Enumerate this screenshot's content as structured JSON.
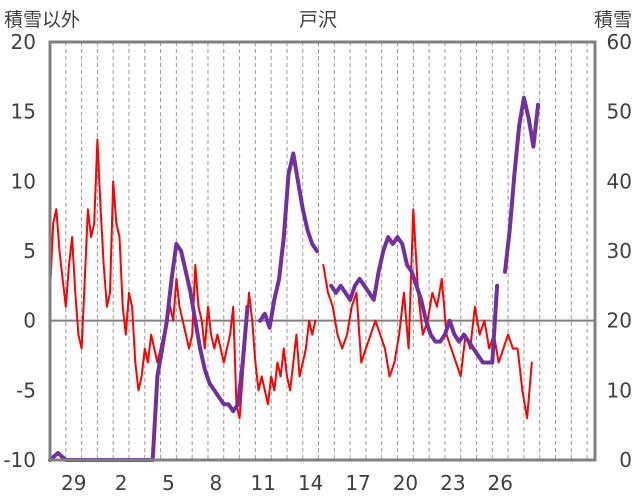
{
  "chart_data": {
    "type": "line",
    "title": "戸沢",
    "ylabel_left": "積雪以外",
    "ylabel_right": "積雪",
    "x_tick_labels": [
      "29",
      "2",
      "5",
      "8",
      "11",
      "14",
      "17",
      "20",
      "23",
      "26"
    ],
    "x_range": [
      27.5,
      62
    ],
    "x_tick_positions": [
      29,
      32,
      35,
      38,
      41,
      44,
      47,
      50,
      53,
      56
    ],
    "y_left_range": [
      -10,
      20
    ],
    "y_left_ticks": [
      "20",
      "15",
      "10",
      "5",
      "0",
      "-5",
      "-10"
    ],
    "y_right_range": [
      0,
      60
    ],
    "y_right_ticks": [
      "60",
      "50",
      "40",
      "30",
      "20",
      "10",
      "0"
    ],
    "grid": {
      "vertical_dashed": true,
      "zero_line": true
    },
    "series": [
      {
        "axis": "left",
        "color": "#ff0000",
        "x": [
          27.5,
          27.7,
          27.9,
          28.1,
          28.3,
          28.5,
          28.7,
          28.9,
          29.1,
          29.3,
          29.5,
          29.7,
          29.9,
          30.1,
          30.3,
          30.5,
          30.7,
          30.9,
          31.1,
          31.3,
          31.5,
          31.7,
          31.9,
          32.1,
          32.3,
          32.5,
          32.7,
          32.9,
          33.1,
          33.3,
          33.5,
          33.7,
          33.9,
          34.1,
          34.3,
          34.5,
          34.7,
          34.9,
          35.1,
          35.3,
          35.5,
          35.7,
          35.9,
          36.1,
          36.3,
          36.5,
          36.7,
          36.9,
          37.1,
          37.3,
          37.5,
          37.7,
          37.9,
          38.1,
          38.3,
          38.5,
          38.7,
          38.9,
          39.1,
          39.3,
          39.5,
          39.7,
          39.9,
          40.1,
          40.3,
          40.5,
          40.7,
          40.9,
          41.1,
          41.3,
          41.5,
          41.7,
          41.9,
          42.1,
          42.3,
          42.5,
          42.7,
          42.9,
          43.1,
          43.3,
          43.5,
          43.7,
          43.9,
          44.1,
          44.3
        ],
        "values": [
          2,
          7,
          8,
          5,
          3,
          1,
          4,
          6,
          2,
          -1,
          -2,
          3,
          8,
          6,
          7,
          13,
          8,
          4,
          1,
          2,
          10,
          7,
          6,
          1,
          -1,
          2,
          1,
          -3,
          -5,
          -4,
          -2,
          -3,
          -1,
          -2,
          -3,
          -2,
          -1,
          0,
          1,
          0,
          3,
          1,
          0,
          -1,
          -2,
          -1,
          4,
          1,
          0,
          -2,
          1,
          -1,
          -2,
          -1,
          -2,
          -3,
          -2,
          -1,
          1,
          -6,
          -7,
          -4,
          -1,
          2,
          0,
          -3,
          -5,
          -4,
          -5,
          -6,
          -4,
          -5,
          -3,
          -4,
          -2,
          -4,
          -5,
          -3,
          -1,
          -4,
          -3,
          -2,
          0,
          -1,
          0
        ]
      },
      {
        "axis": "left",
        "color": "#ff0000",
        "x": [
          44.8,
          45.1,
          45.4,
          45.7,
          46.0,
          46.3,
          46.6,
          46.9,
          47.2,
          47.5,
          47.8,
          48.1,
          48.4,
          48.7,
          49.0,
          49.3,
          49.6,
          49.9,
          50.2,
          50.5,
          50.8,
          51.1,
          51.4,
          51.7,
          52.0,
          52.3,
          52.6,
          52.9,
          53.2,
          53.5,
          53.8,
          54.1,
          54.4,
          54.7,
          55.0,
          55.3,
          55.6,
          55.9,
          56.2,
          56.5,
          56.8,
          57.1,
          57.4,
          57.7,
          58.0
        ],
        "values": [
          4,
          2,
          1,
          -1,
          -2,
          -1,
          1,
          2,
          -3,
          -2,
          -1,
          0,
          -1,
          -2,
          -4,
          -3,
          -1,
          2,
          -2,
          8,
          2,
          -1,
          0,
          2,
          1,
          3,
          -1,
          -2,
          -3,
          -4,
          -1,
          -2,
          1,
          -1,
          0,
          -2,
          -1,
          -3,
          -2,
          -1,
          -2,
          -2,
          -5,
          -7,
          -3
        ]
      },
      {
        "axis": "right",
        "color": "#7030a0",
        "x": [
          27.5,
          28.0,
          28.5,
          29.0,
          29.5,
          30.0,
          30.5,
          31.0,
          31.5,
          32.0,
          32.5,
          33.0,
          33.5,
          34.0,
          34.3,
          34.6,
          34.9,
          35.2,
          35.5,
          35.8,
          36.1,
          36.4,
          36.7,
          37.0,
          37.3,
          37.6,
          37.9,
          38.2,
          38.5,
          38.8,
          39.1,
          39.4,
          39.7,
          40.0
        ],
        "values": [
          0,
          1,
          0,
          0,
          0,
          0,
          0,
          0,
          0,
          0,
          0,
          0,
          0,
          0,
          12,
          16,
          20,
          26,
          31,
          30,
          27,
          24,
          20,
          16,
          13,
          11,
          10,
          9,
          8,
          8,
          7,
          8,
          14,
          22
        ]
      },
      {
        "axis": "right",
        "color": "#7030a0",
        "x": [
          40.8,
          41.1,
          41.4,
          41.7,
          42.0,
          42.3,
          42.6,
          42.9,
          43.2,
          43.5,
          43.8,
          44.1,
          44.4
        ],
        "values": [
          20,
          21,
          19,
          23,
          26,
          32,
          41,
          44,
          40,
          36,
          33,
          31,
          30
        ]
      },
      {
        "axis": "right",
        "color": "#7030a0",
        "x": [
          45.3,
          45.6,
          45.9,
          46.2,
          46.5,
          46.8,
          47.1,
          47.4,
          47.7,
          48.0,
          48.3,
          48.6,
          48.9,
          49.2,
          49.5,
          49.8,
          50.1,
          50.4,
          50.7,
          51.0,
          51.3,
          51.6,
          51.9,
          52.2,
          52.5,
          52.8,
          53.1,
          53.4,
          53.7,
          54.0,
          54.3,
          54.6,
          54.9,
          55.2,
          55.5,
          55.8
        ],
        "values": [
          25,
          24,
          25,
          24,
          23,
          25,
          26,
          25,
          24,
          23,
          27,
          30,
          32,
          31,
          32,
          31,
          28,
          27,
          25,
          23,
          20,
          18,
          17,
          17,
          18,
          20,
          18,
          17,
          18,
          17,
          16,
          15,
          14,
          14,
          14,
          25
        ]
      },
      {
        "axis": "right",
        "color": "#7030a0",
        "x": [
          56.3,
          56.6,
          56.9,
          57.2,
          57.5,
          57.8,
          58.1,
          58.4
        ],
        "values": [
          27,
          33,
          41,
          48,
          52,
          49,
          45,
          51
        ]
      }
    ]
  }
}
